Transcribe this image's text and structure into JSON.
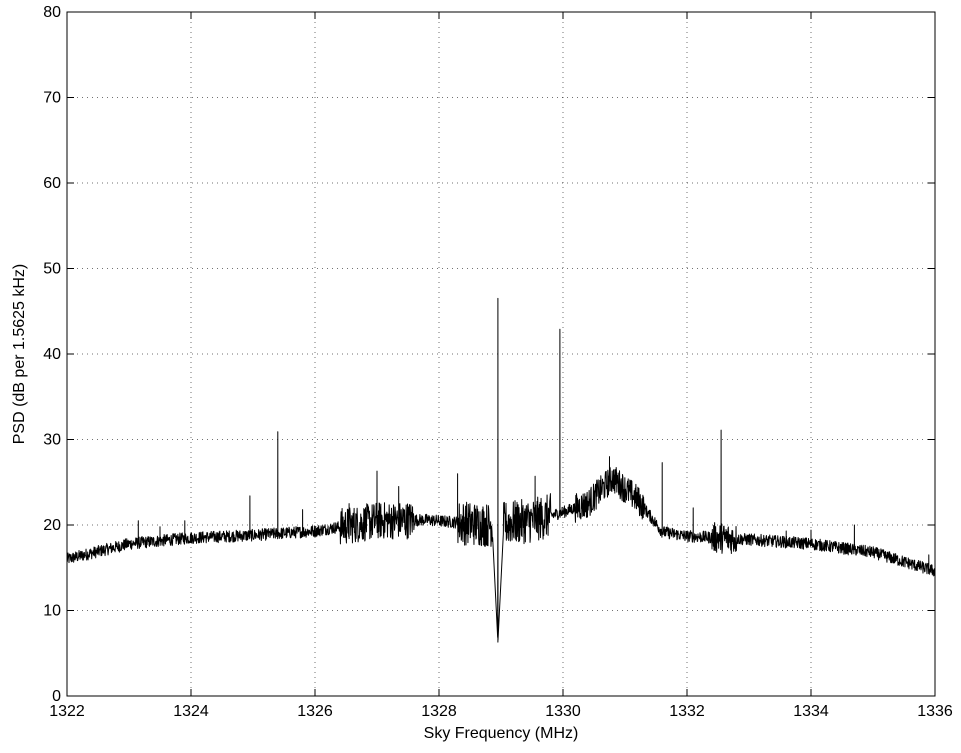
{
  "chart_data": {
    "type": "line",
    "title": "",
    "xlabel": "Sky Frequency (MHz)",
    "ylabel": "PSD (dB per 1.5625 kHz)",
    "xlim": [
      1322,
      1336
    ],
    "ylim": [
      0,
      80
    ],
    "grid": true,
    "x_ticks": [
      "1322",
      "1324",
      "1326",
      "1328",
      "1330",
      "1332",
      "1334",
      "1336"
    ],
    "y_ticks": [
      "0",
      "10",
      "20",
      "30",
      "40",
      "50",
      "60",
      "70",
      "80"
    ],
    "baseline": {
      "x": [
        1322,
        1323,
        1324,
        1325,
        1326,
        1327,
        1327.8,
        1328.3,
        1328.8,
        1329.5,
        1330.0,
        1330.4,
        1330.8,
        1331.2,
        1331.6,
        1332.0,
        1333.0,
        1334.0,
        1335.0,
        1336.0
      ],
      "y": [
        16.0,
        17.8,
        18.5,
        18.8,
        19.3,
        20.5,
        20.6,
        20.3,
        20.0,
        20.5,
        21.5,
        22.5,
        25.5,
        23.0,
        19.2,
        18.7,
        18.3,
        17.8,
        16.8,
        14.6
      ]
    },
    "peaks": [
      {
        "x": 1323.15,
        "y": 20.5
      },
      {
        "x": 1323.5,
        "y": 19.8
      },
      {
        "x": 1323.9,
        "y": 20.5
      },
      {
        "x": 1324.95,
        "y": 23.4
      },
      {
        "x": 1325.4,
        "y": 30.9
      },
      {
        "x": 1325.8,
        "y": 21.8
      },
      {
        "x": 1326.55,
        "y": 22.5
      },
      {
        "x": 1327.0,
        "y": 26.3
      },
      {
        "x": 1327.35,
        "y": 24.5
      },
      {
        "x": 1328.3,
        "y": 26.0
      },
      {
        "x": 1328.95,
        "y": 46.5
      },
      {
        "x": 1329.55,
        "y": 25.7
      },
      {
        "x": 1329.95,
        "y": 42.9
      },
      {
        "x": 1330.75,
        "y": 28.0
      },
      {
        "x": 1331.6,
        "y": 27.3
      },
      {
        "x": 1332.1,
        "y": 22.0
      },
      {
        "x": 1332.55,
        "y": 31.1
      },
      {
        "x": 1333.6,
        "y": 19.3
      },
      {
        "x": 1334.0,
        "y": 19.4
      },
      {
        "x": 1334.7,
        "y": 20.0
      },
      {
        "x": 1335.9,
        "y": 16.5
      }
    ],
    "dips": [
      {
        "x": 1328.95,
        "y": 6.3
      }
    ]
  }
}
